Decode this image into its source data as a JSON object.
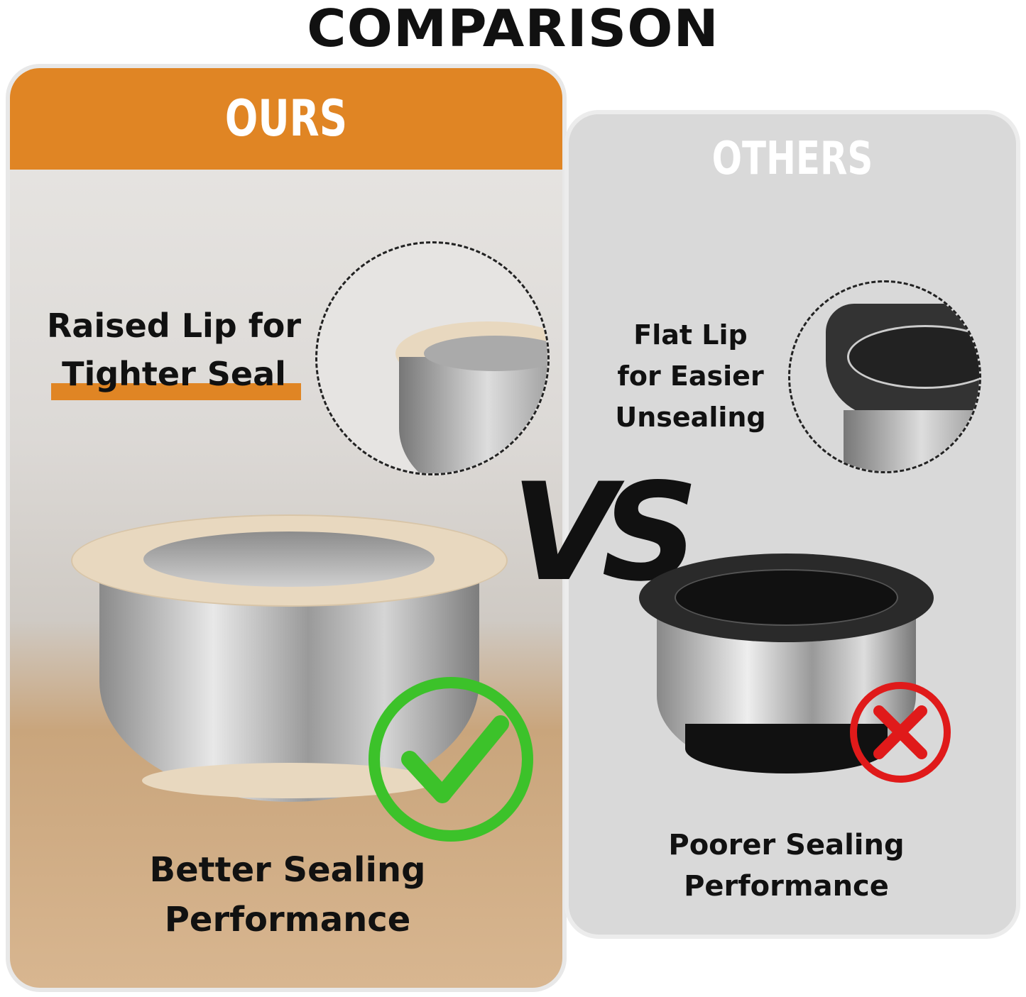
{
  "title": "COMPARISON",
  "ours": {
    "header": "OURS",
    "feature_line1": "Raised Lip for",
    "feature_line2": "Tighter Seal",
    "result_line1": "Better Sealing",
    "result_line2": "Performance",
    "result_icon": "check-icon",
    "accent_color": "#e08524",
    "check_color": "#3cc22a"
  },
  "others": {
    "header": "OTHERS",
    "feature_line1": "Flat Lip",
    "feature_line2": "for Easier",
    "feature_line3": "Unsealing",
    "result_line1": "Poorer Sealing",
    "result_line2": "Performance",
    "result_icon": "x-icon",
    "x_color": "#e01a1a"
  },
  "vs": "VS"
}
